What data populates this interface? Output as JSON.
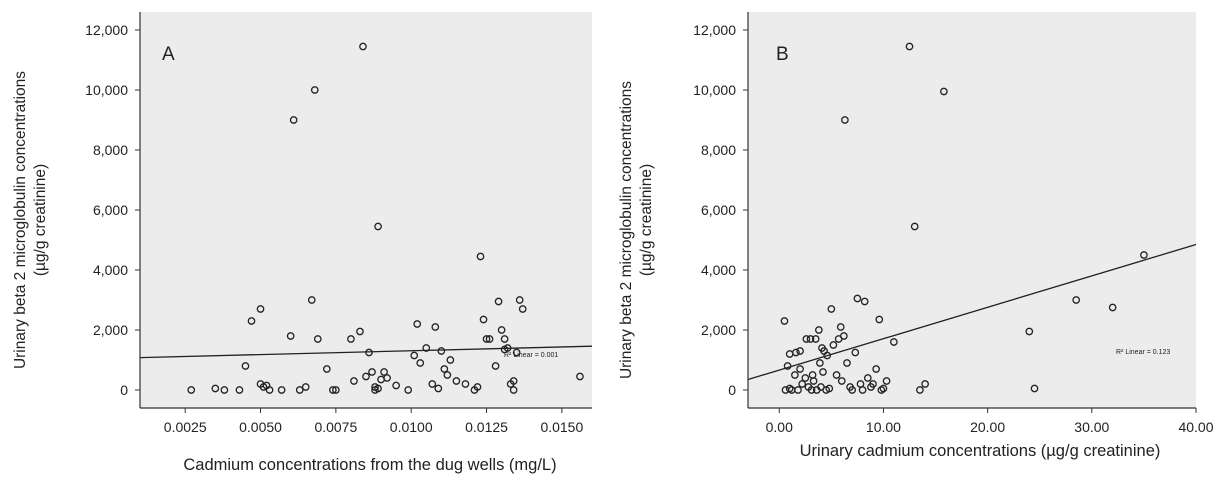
{
  "chart_data": [
    {
      "type": "scatter",
      "panel_label": "A",
      "xlabel": "Cadmium concentrations from the dug wells (mg/L)",
      "ylabel_line1": "Urinary beta 2 microglobulin concentrations",
      "ylabel_line2": "(µg/g creatinine)",
      "xlim": [
        0.001,
        0.016
      ],
      "ylim": [
        -600,
        12600
      ],
      "xticks": [
        0.0025,
        0.005,
        0.0075,
        0.01,
        0.0125,
        0.015
      ],
      "xtick_labels": [
        "0.0025",
        "0.0050",
        "0.0075",
        "0.0100",
        "0.0125",
        "0.0150"
      ],
      "yticks": [
        0,
        2000,
        4000,
        6000,
        8000,
        10000,
        12000
      ],
      "ytick_labels": [
        "0",
        "2,000",
        "4,000",
        "6,000",
        "8,000",
        "10,000",
        "12,000"
      ],
      "fit_label": "R² Linear = 0.001",
      "fit_line": {
        "x": [
          0.001,
          0.016
        ],
        "y": [
          1080,
          1460
        ]
      },
      "points": [
        {
          "x": 0.0027,
          "y": 0
        },
        {
          "x": 0.0035,
          "y": 50
        },
        {
          "x": 0.0038,
          "y": 0
        },
        {
          "x": 0.0043,
          "y": 0
        },
        {
          "x": 0.0045,
          "y": 800
        },
        {
          "x": 0.0047,
          "y": 2300
        },
        {
          "x": 0.005,
          "y": 2700
        },
        {
          "x": 0.005,
          "y": 200
        },
        {
          "x": 0.0051,
          "y": 100
        },
        {
          "x": 0.0052,
          "y": 150
        },
        {
          "x": 0.0053,
          "y": 0
        },
        {
          "x": 0.0057,
          "y": 0
        },
        {
          "x": 0.006,
          "y": 1800
        },
        {
          "x": 0.0061,
          "y": 9000
        },
        {
          "x": 0.0063,
          "y": 0
        },
        {
          "x": 0.0065,
          "y": 100
        },
        {
          "x": 0.0067,
          "y": 3000
        },
        {
          "x": 0.0068,
          "y": 10000
        },
        {
          "x": 0.0069,
          "y": 1700
        },
        {
          "x": 0.0072,
          "y": 700
        },
        {
          "x": 0.0074,
          "y": 0
        },
        {
          "x": 0.0075,
          "y": 0
        },
        {
          "x": 0.008,
          "y": 1700
        },
        {
          "x": 0.0081,
          "y": 300
        },
        {
          "x": 0.0083,
          "y": 1950
        },
        {
          "x": 0.0084,
          "y": 11450
        },
        {
          "x": 0.0085,
          "y": 450
        },
        {
          "x": 0.0086,
          "y": 1250
        },
        {
          "x": 0.0087,
          "y": 600
        },
        {
          "x": 0.0088,
          "y": 0
        },
        {
          "x": 0.0088,
          "y": 100
        },
        {
          "x": 0.0089,
          "y": 5450
        },
        {
          "x": 0.0089,
          "y": 50
        },
        {
          "x": 0.009,
          "y": 350
        },
        {
          "x": 0.0091,
          "y": 600
        },
        {
          "x": 0.0092,
          "y": 400
        },
        {
          "x": 0.0095,
          "y": 150
        },
        {
          "x": 0.0099,
          "y": 0
        },
        {
          "x": 0.0101,
          "y": 1150
        },
        {
          "x": 0.0102,
          "y": 2200
        },
        {
          "x": 0.0103,
          "y": 900
        },
        {
          "x": 0.0105,
          "y": 1400
        },
        {
          "x": 0.0107,
          "y": 200
        },
        {
          "x": 0.0108,
          "y": 2100
        },
        {
          "x": 0.0109,
          "y": 50
        },
        {
          "x": 0.011,
          "y": 1300
        },
        {
          "x": 0.0111,
          "y": 700
        },
        {
          "x": 0.0112,
          "y": 500
        },
        {
          "x": 0.0113,
          "y": 1000
        },
        {
          "x": 0.0115,
          "y": 300
        },
        {
          "x": 0.0118,
          "y": 200
        },
        {
          "x": 0.0121,
          "y": 0
        },
        {
          "x": 0.0122,
          "y": 100
        },
        {
          "x": 0.0123,
          "y": 4450
        },
        {
          "x": 0.0124,
          "y": 2350
        },
        {
          "x": 0.0125,
          "y": 1700
        },
        {
          "x": 0.0126,
          "y": 1700
        },
        {
          "x": 0.0128,
          "y": 800
        },
        {
          "x": 0.0129,
          "y": 2950
        },
        {
          "x": 0.013,
          "y": 2000
        },
        {
          "x": 0.0131,
          "y": 1700
        },
        {
          "x": 0.0131,
          "y": 1350
        },
        {
          "x": 0.0132,
          "y": 1400
        },
        {
          "x": 0.0133,
          "y": 200
        },
        {
          "x": 0.0134,
          "y": 0
        },
        {
          "x": 0.0134,
          "y": 300
        },
        {
          "x": 0.0135,
          "y": 1250
        },
        {
          "x": 0.0136,
          "y": 3000
        },
        {
          "x": 0.0137,
          "y": 2700
        },
        {
          "x": 0.0156,
          "y": 450
        }
      ]
    },
    {
      "type": "scatter",
      "panel_label": "B",
      "xlabel": "Urinary cadmium concentrations (µg/g creatinine)",
      "ylabel_line1": "Urinary beta 2 microglobulin concentrations",
      "ylabel_line2": "(µg/g creatinine)",
      "xlim": [
        -3,
        40
      ],
      "ylim": [
        -600,
        12600
      ],
      "xticks": [
        0,
        10,
        20,
        30,
        40
      ],
      "xtick_labels": [
        "0.00",
        "10.00",
        "20.00",
        "30.00",
        "40.00"
      ],
      "yticks": [
        0,
        2000,
        4000,
        6000,
        8000,
        10000,
        12000
      ],
      "ytick_labels": [
        "0",
        "2,000",
        "4,000",
        "6,000",
        "8,000",
        "10,000",
        "12,000"
      ],
      "fit_label": "R² Linear = 0.123",
      "fit_line": {
        "x": [
          -3,
          40
        ],
        "y": [
          350,
          4850
        ]
      },
      "points": [
        {
          "x": 0.5,
          "y": 2300
        },
        {
          "x": 0.6,
          "y": 0
        },
        {
          "x": 0.8,
          "y": 800
        },
        {
          "x": 1.0,
          "y": 50
        },
        {
          "x": 1.0,
          "y": 1200
        },
        {
          "x": 1.2,
          "y": 0
        },
        {
          "x": 1.5,
          "y": 500
        },
        {
          "x": 1.6,
          "y": 1250
        },
        {
          "x": 1.8,
          "y": 0
        },
        {
          "x": 2.0,
          "y": 1300
        },
        {
          "x": 2.0,
          "y": 700
        },
        {
          "x": 2.2,
          "y": 200
        },
        {
          "x": 2.5,
          "y": 400
        },
        {
          "x": 2.6,
          "y": 1700
        },
        {
          "x": 2.8,
          "y": 100
        },
        {
          "x": 3.0,
          "y": 1700
        },
        {
          "x": 3.1,
          "y": 0
        },
        {
          "x": 3.2,
          "y": 500
        },
        {
          "x": 3.3,
          "y": 300
        },
        {
          "x": 3.5,
          "y": 1700
        },
        {
          "x": 3.6,
          "y": 0
        },
        {
          "x": 3.8,
          "y": 2000
        },
        {
          "x": 3.9,
          "y": 900
        },
        {
          "x": 4.0,
          "y": 100
        },
        {
          "x": 4.1,
          "y": 1400
        },
        {
          "x": 4.2,
          "y": 600
        },
        {
          "x": 4.3,
          "y": 1300
        },
        {
          "x": 4.5,
          "y": 0
        },
        {
          "x": 4.6,
          "y": 1150
        },
        {
          "x": 4.8,
          "y": 50
        },
        {
          "x": 5.0,
          "y": 2700
        },
        {
          "x": 5.2,
          "y": 1500
        },
        {
          "x": 5.5,
          "y": 500
        },
        {
          "x": 5.7,
          "y": 1700
        },
        {
          "x": 5.9,
          "y": 2100
        },
        {
          "x": 6.0,
          "y": 300
        },
        {
          "x": 6.2,
          "y": 1800
        },
        {
          "x": 6.3,
          "y": 9000
        },
        {
          "x": 6.5,
          "y": 900
        },
        {
          "x": 6.8,
          "y": 100
        },
        {
          "x": 7.0,
          "y": 0
        },
        {
          "x": 7.3,
          "y": 1250
        },
        {
          "x": 7.5,
          "y": 3050
        },
        {
          "x": 7.8,
          "y": 200
        },
        {
          "x": 8.0,
          "y": 0
        },
        {
          "x": 8.2,
          "y": 2950
        },
        {
          "x": 8.5,
          "y": 400
        },
        {
          "x": 8.8,
          "y": 100
        },
        {
          "x": 9.0,
          "y": 200
        },
        {
          "x": 9.3,
          "y": 700
        },
        {
          "x": 9.6,
          "y": 2350
        },
        {
          "x": 9.8,
          "y": 0
        },
        {
          "x": 10.0,
          "y": 50
        },
        {
          "x": 10.3,
          "y": 300
        },
        {
          "x": 11.0,
          "y": 1600
        },
        {
          "x": 12.5,
          "y": 11450
        },
        {
          "x": 13.0,
          "y": 5450
        },
        {
          "x": 13.5,
          "y": 0
        },
        {
          "x": 14.0,
          "y": 200
        },
        {
          "x": 15.8,
          "y": 9950
        },
        {
          "x": 24.0,
          "y": 1950
        },
        {
          "x": 24.5,
          "y": 50
        },
        {
          "x": 28.5,
          "y": 3000
        },
        {
          "x": 32.0,
          "y": 2750
        },
        {
          "x": 35.0,
          "y": 4500
        }
      ]
    }
  ]
}
